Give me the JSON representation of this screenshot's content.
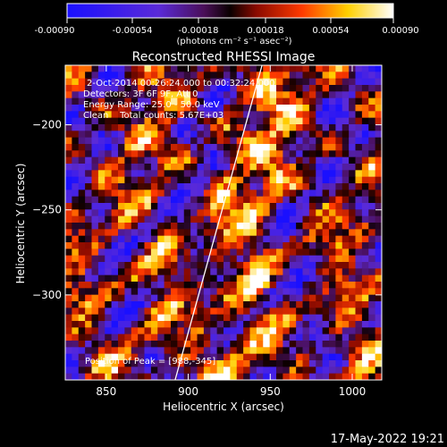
{
  "colorbar": {
    "ticks": [
      "-0.00090",
      "-0.00054",
      "-0.00018",
      "0.00018",
      "0.00054",
      "0.00090"
    ],
    "units": "(photons cm⁻² s⁻¹ asec⁻²)"
  },
  "overlay": {
    "time_range": "2-Oct-2014 00:26:24.000 to 00:32:24.000",
    "detectors": "Detectors: 3F 6F 9F, Att 0",
    "energy": "Energy Range: 25.0 - 50.0 keV",
    "clean": "Clean    Total counts: 5.67E+03",
    "peak": "Position of Peak = [988,-345]"
  },
  "footer": {
    "timestamp": "17-May-2022 19:21"
  },
  "chart_data": {
    "type": "heatmap",
    "title": "Reconstructed RHESSI Image",
    "xlabel": "Heliocentric X (arcsec)",
    "ylabel": "Heliocentric Y (arcsec)",
    "xlim": [
      825,
      1018
    ],
    "ylim": [
      -350,
      -165
    ],
    "xticks": [
      850,
      900,
      950,
      1000
    ],
    "yticks": [
      -200,
      -250,
      -300
    ],
    "colorbar_range": [
      -0.0009,
      0.0009
    ],
    "colormap": "blue-purple-red-yellow-white",
    "limb_line": [
      [
        892,
        -350
      ],
      [
        945,
        -165
      ]
    ],
    "peak": [
      988,
      -345
    ],
    "grid": false
  }
}
